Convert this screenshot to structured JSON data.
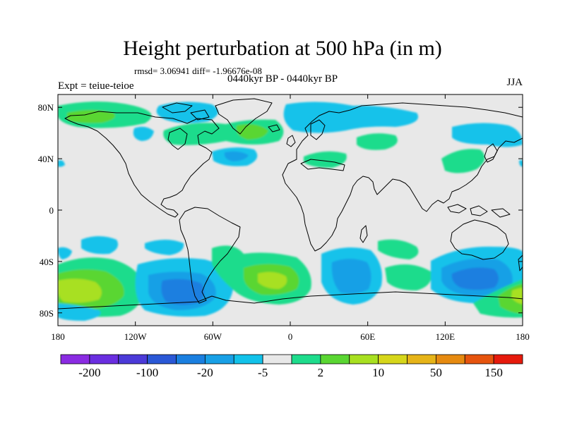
{
  "title": "Height perturbation at 500 hPa (in m)",
  "stats": "rmsd= 3.06941  diff= -1.96676e-08",
  "subtitle": "0440kyr BP - 0440kyr BP",
  "experiment": "Expt = teiue-teioe",
  "season": "JJA",
  "map": {
    "projection": "cylindrical-equidistant",
    "lon_range": [
      -180,
      180
    ],
    "lat_range": [
      -90,
      90
    ],
    "background_color": "#e8e8e8",
    "coastline_color": "#000000",
    "lat_ticks": [
      {
        "value": 80,
        "label": "80N"
      },
      {
        "value": 40,
        "label": "40N"
      },
      {
        "value": 0,
        "label": "0"
      },
      {
        "value": -40,
        "label": "40S"
      },
      {
        "value": -80,
        "label": "80S"
      }
    ],
    "lon_ticks": [
      {
        "value": -180,
        "label": "180"
      },
      {
        "value": -120,
        "label": "120W"
      },
      {
        "value": -60,
        "label": "60W"
      },
      {
        "value": 0,
        "label": "0"
      },
      {
        "value": 60,
        "label": "60E"
      },
      {
        "value": 120,
        "label": "120E"
      },
      {
        "value": 180,
        "label": "180"
      }
    ]
  },
  "colorbar": {
    "colors": [
      "#8a2be2",
      "#6a2ee0",
      "#4b3ad8",
      "#2a58d6",
      "#1a7fe0",
      "#18a0e6",
      "#12c2ea",
      "#e8e8e8",
      "#1edc8c",
      "#5ad632",
      "#a8e020",
      "#d6d61a",
      "#e6b418",
      "#e68a10",
      "#e6540e",
      "#e61a0c"
    ],
    "labels": [
      {
        "boundary": 1,
        "text": "-200"
      },
      {
        "boundary": 3,
        "text": "-100"
      },
      {
        "boundary": 5,
        "text": "-20"
      },
      {
        "boundary": 7,
        "text": "-5"
      },
      {
        "boundary": 9,
        "text": "2"
      },
      {
        "boundary": 11,
        "text": "10"
      },
      {
        "boundary": 13,
        "text": "50"
      },
      {
        "boundary": 15,
        "text": "150"
      }
    ]
  }
}
